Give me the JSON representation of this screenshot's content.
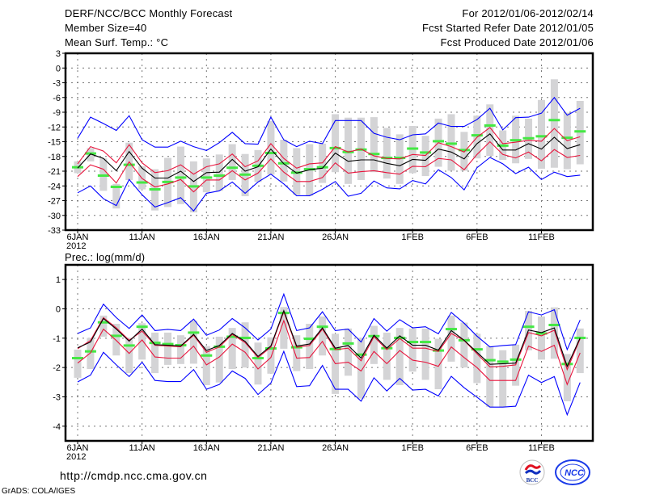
{
  "header": {
    "title": "DERF/NCC/BCC Monthly Forecast",
    "member_size": "Member Size=40",
    "period": "For 2012/01/06-2012/02/14",
    "started": "Fcst Started Refer Date 2012/01/05",
    "produced": "Fcst Produced Date 2012/01/06"
  },
  "footer": {
    "url": "http://cmdp.ncc.cma.gov.cn",
    "grads": "GrADS: COLA/IGES",
    "logo_left": "BCC",
    "logo_right": "NCC"
  },
  "colors": {
    "max_min": "#0000ff",
    "spread": "#e8143c",
    "mean": "#000000",
    "observed": "#44e844",
    "range_bar": "#d4d4d6"
  },
  "chart_data": [
    {
      "type": "line",
      "title": "Mean Surf. Temp.: °C",
      "xlabel": "",
      "ylabel": "Mean Surf. Temp.: °C",
      "ylim": [
        -33,
        3
      ],
      "yticks": [
        3,
        0,
        -3,
        -6,
        -9,
        -12,
        -15,
        -18,
        -21,
        -24,
        -27,
        -30,
        -33
      ],
      "xlim": [
        -1,
        40
      ],
      "xticks": [
        {
          "day": 0,
          "label": "6JAN"
        },
        {
          "day": 5,
          "label": "11JAN"
        },
        {
          "day": 10,
          "label": "16JAN"
        },
        {
          "day": 15,
          "label": "21JAN"
        },
        {
          "day": 20,
          "label": "26JAN"
        },
        {
          "day": 26,
          "label": "1FEB"
        },
        {
          "day": 31,
          "label": "6FEB"
        },
        {
          "day": 36,
          "label": "11FEB"
        }
      ],
      "year_label": "2012",
      "grid": true,
      "series": {
        "max": [
          -14.3,
          -10,
          -11.3,
          -12.7,
          -9.7,
          -14.6,
          -16.1,
          -16.1,
          -14.9,
          -16,
          -16.8,
          -15.2,
          -13.1,
          -15.4,
          -15.5,
          -10,
          -14.6,
          -16,
          -14.9,
          -15.4,
          -10.7,
          -10.7,
          -10.7,
          -13.3,
          -14.1,
          -14.6,
          -13.6,
          -13.4,
          -11.2,
          -11.9,
          -11.9,
          -10.5,
          -8.2,
          -12.6,
          -10.1,
          -10,
          -9.2,
          -6,
          -9.6,
          -8.2
        ],
        "upper": [
          -19.5,
          -16,
          -16.9,
          -19.3,
          -15.6,
          -19.3,
          -21.3,
          -20.9,
          -19.7,
          -21.6,
          -20.1,
          -19.5,
          -17.5,
          -20.1,
          -18.9,
          -15.4,
          -18.4,
          -20.4,
          -19.5,
          -19.3,
          -16,
          -17.1,
          -16.5,
          -17.9,
          -18.4,
          -18.5,
          -17.6,
          -17.8,
          -15.2,
          -16,
          -17.1,
          -14.1,
          -12.1,
          -15.4,
          -15.1,
          -14.7,
          -14.9,
          -12.3,
          -14.8,
          -14
        ],
        "mean": [
          -20.4,
          -17.5,
          -18.4,
          -20.9,
          -17,
          -20.4,
          -22.4,
          -22.4,
          -21,
          -23.1,
          -21.3,
          -21.2,
          -18.6,
          -21,
          -20.1,
          -16.5,
          -19.5,
          -21.4,
          -20.7,
          -20.4,
          -17.3,
          -19,
          -18.7,
          -18.7,
          -19.4,
          -19.9,
          -18.6,
          -18.8,
          -16.5,
          -17.1,
          -18.5,
          -15.4,
          -13.4,
          -16.7,
          -16.7,
          -15.4,
          -16.5,
          -14.1,
          -16.4,
          -15.6
        ],
        "lower": [
          -22.1,
          -19.7,
          -20.6,
          -23.4,
          -19.1,
          -22.5,
          -24.2,
          -23.6,
          -22.7,
          -25.2,
          -22.8,
          -22.8,
          -20.9,
          -22.8,
          -21.4,
          -18.5,
          -21.2,
          -23.1,
          -23.1,
          -22.3,
          -19.3,
          -21.4,
          -21.1,
          -20.9,
          -21.3,
          -21.6,
          -20,
          -20.1,
          -18.4,
          -18.7,
          -20.7,
          -17.6,
          -15,
          -17.6,
          -18.3,
          -17.1,
          -18.9,
          -16.6,
          -18.2,
          -17.8
        ],
        "min": [
          -25.4,
          -24,
          -26.6,
          -28,
          -22.7,
          -25.8,
          -28.3,
          -27.4,
          -26.4,
          -29.1,
          -25.5,
          -25,
          -23.2,
          -25.5,
          -23.2,
          -21.6,
          -23.6,
          -26,
          -26,
          -24.7,
          -23.1,
          -26.1,
          -25.5,
          -23,
          -24.4,
          -24.6,
          -22.9,
          -23.6,
          -20.7,
          -22.3,
          -24.8,
          -20.3,
          -18.2,
          -19.5,
          -21.5,
          -20.2,
          -22.7,
          -21.2,
          -22.1,
          -21.8
        ],
        "observed": [
          -20.2,
          -17.4,
          -21.9,
          -24.2,
          -19.7,
          -23.3,
          -24.7,
          -23.2,
          -22.3,
          -24.1,
          -22.3,
          -21.9,
          -20.3,
          -21.7,
          -19.9,
          -17.3,
          -19.4,
          -21.3,
          -20.6,
          -20.2,
          -16.3,
          -17.1,
          -16.6,
          -17.5,
          -18.3,
          -18.3,
          -16.4,
          -17.2,
          -14.9,
          -15.4,
          -16.7,
          -13.7,
          -11.7,
          -15.8,
          -14.7,
          -14.3,
          -13.9,
          -10.6,
          -14.2,
          -12.9
        ],
        "bar_high": [
          -19,
          -16.3,
          -18.4,
          -23.6,
          -15.2,
          -20,
          -20.6,
          -18.3,
          -16,
          -19,
          -18.4,
          -17.6,
          -15.5,
          -17.5,
          -16.7,
          -10.8,
          -14.6,
          -16.3,
          -15.5,
          -15.4,
          -9.4,
          -10.1,
          -10.1,
          -10,
          -12.2,
          -13.5,
          -11.8,
          -13.8,
          -10.3,
          -9.4,
          -13,
          -9.7,
          -7.4,
          -12.7,
          -9.7,
          -10.3,
          -6.5,
          -2.3,
          -9.1,
          -6.7
        ],
        "bar_low": [
          -21.4,
          -19,
          -25,
          -28.6,
          -22.8,
          -24.7,
          -29,
          -28.3,
          -27.7,
          -29.4,
          -25.3,
          -25,
          -22.8,
          -26.1,
          -23.2,
          -21.7,
          -23.1,
          -25.8,
          -26,
          -23.4,
          -21.2,
          -23.6,
          -22.8,
          -21.2,
          -22.5,
          -23.6,
          -21.4,
          -22,
          -20.1,
          -20.9,
          -20.9,
          -18.4,
          -17.9,
          -18.7,
          -19.4,
          -18.5,
          -20.5,
          -20.3,
          -20.6,
          -19.6
        ]
      }
    },
    {
      "type": "line",
      "title": "Prec.: log(mm/d)",
      "xlabel": "",
      "ylabel": "Prec.: log(mm/d)",
      "ylim": [
        -4.5,
        1.5
      ],
      "yticks": [
        1,
        0,
        -1,
        -2,
        -3,
        -4
      ],
      "xlim": [
        -1,
        40
      ],
      "xticks": [
        {
          "day": 0,
          "label": "6JAN"
        },
        {
          "day": 5,
          "label": "11JAN"
        },
        {
          "day": 10,
          "label": "16JAN"
        },
        {
          "day": 15,
          "label": "21JAN"
        },
        {
          "day": 20,
          "label": "26JAN"
        },
        {
          "day": 26,
          "label": "1FEB"
        },
        {
          "day": 31,
          "label": "6FEB"
        },
        {
          "day": 36,
          "label": "11FEB"
        }
      ],
      "year_label": "2012",
      "grid": true,
      "series": {
        "max": [
          -0.84,
          -0.65,
          0.16,
          -0.3,
          -0.67,
          -0.21,
          -0.74,
          -0.7,
          -0.74,
          -0.35,
          -0.9,
          -0.72,
          -0.33,
          -0.65,
          -1.06,
          -0.69,
          0.5,
          -0.74,
          -0.65,
          -0.1,
          -0.74,
          -0.69,
          -1.13,
          -0.33,
          -0.76,
          -0.37,
          -0.65,
          -0.61,
          -0.85,
          -0.12,
          -0.49,
          -0.93,
          -1.3,
          -1.25,
          -1.22,
          -0.1,
          -0.21,
          -0.03,
          -1.39,
          -0.38
        ],
        "upper": [
          -1.36,
          -1.08,
          -0.3,
          -0.65,
          -1.07,
          -0.76,
          -1.24,
          -1.27,
          -1.29,
          -0.9,
          -1.48,
          -1.3,
          -0.87,
          -1.15,
          -1.66,
          -1.31,
          -0.1,
          -1.31,
          -1.25,
          -0.69,
          -1.39,
          -1.34,
          -1.77,
          -0.95,
          -1.39,
          -1.01,
          -1.34,
          -1.34,
          -1.45,
          -0.84,
          -1.08,
          -1.53,
          -1.98,
          -1.96,
          -1.91,
          -0.81,
          -0.92,
          -0.73,
          -2.07,
          -1.02
        ],
        "mean": [
          -1.33,
          -1.13,
          -0.33,
          -0.69,
          -1.1,
          -0.69,
          -1.22,
          -1.24,
          -1.27,
          -0.87,
          -1.42,
          -1.25,
          -0.84,
          -1.11,
          -1.62,
          -1.27,
          -0.06,
          -1.27,
          -1.2,
          -0.65,
          -1.34,
          -1.25,
          -1.68,
          -0.9,
          -1.34,
          -0.92,
          -1.24,
          -1.24,
          -1.41,
          -0.74,
          -1.07,
          -1.48,
          -1.89,
          -1.87,
          -1.85,
          -0.72,
          -0.81,
          -0.65,
          -1.96,
          -0.99
        ],
        "lower": [
          -1.85,
          -1.5,
          -0.69,
          -1.08,
          -1.52,
          -1.06,
          -1.64,
          -1.68,
          -1.68,
          -1.27,
          -1.91,
          -1.64,
          -1.2,
          -1.48,
          -2.05,
          -1.66,
          -0.4,
          -1.68,
          -1.66,
          -1.11,
          -1.87,
          -1.82,
          -2.12,
          -1.45,
          -1.87,
          -1.42,
          -1.75,
          -1.82,
          -1.96,
          -1.3,
          -1.66,
          -2,
          -2.44,
          -2.44,
          -2.44,
          -1.27,
          -1.45,
          -1.24,
          -2.58,
          -1.5
        ],
        "min": [
          -2.49,
          -2.26,
          -1.48,
          -1.91,
          -2.31,
          -1.82,
          -2.44,
          -2.48,
          -2.48,
          -2.07,
          -2.74,
          -2.58,
          -2.12,
          -2.37,
          -2.92,
          -2.53,
          -1.45,
          -2.65,
          -2.62,
          -1.93,
          -2.74,
          -2.74,
          -3.15,
          -2.35,
          -2.8,
          -2.37,
          -2.77,
          -2.74,
          -2.97,
          -2.3,
          -2.69,
          -3.01,
          -3.35,
          -3.35,
          -3.32,
          -2.26,
          -2.51,
          -2.31,
          -3.61,
          -2.51
        ],
        "observed": [
          -1.68,
          -1.45,
          -0.46,
          -0.92,
          -1.25,
          -0.61,
          -1.16,
          -1.2,
          -1.24,
          -0.81,
          -1.59,
          -1.29,
          -0.95,
          -0.99,
          -1.68,
          -1.35,
          -0.14,
          -1.31,
          -1.02,
          -0.61,
          -1.37,
          -1.18,
          -1.56,
          -0.93,
          -1.34,
          -0.99,
          -1.13,
          -1.13,
          -1.42,
          -0.69,
          -1.07,
          -1.38,
          -1.75,
          -1.8,
          -1.73,
          -0.61,
          -0.84,
          -0.55,
          -1.88,
          -0.99
        ],
        "bar_high": [
          -1.39,
          -0.99,
          -0.23,
          -0.51,
          -0.99,
          -0.49,
          -0.81,
          -0.81,
          -0.9,
          -0.4,
          -1.27,
          -0.95,
          -0.65,
          -0.46,
          -1.15,
          -0.97,
          0.06,
          -0.9,
          -0.51,
          -0.26,
          -0.85,
          -0.67,
          -0.99,
          -0.58,
          -0.81,
          -0.65,
          -0.67,
          -0.67,
          -1.02,
          -0.23,
          -0.47,
          -0.85,
          -1.27,
          -1.41,
          -1.22,
          -0.07,
          -0.26,
          0.05,
          -1.54,
          -0.67
        ],
        "bar_low": [
          -2.35,
          -2.05,
          -0.95,
          -1.59,
          -2.19,
          -1.73,
          -2.19,
          -1.91,
          -1.88,
          -1.87,
          -2.6,
          -2.51,
          -2.05,
          -2,
          -2.58,
          -2.21,
          -1.36,
          -2.12,
          -2.05,
          -1.59,
          -2.9,
          -2.28,
          -3.06,
          -1.88,
          -2.42,
          -2.6,
          -2.14,
          -2.42,
          -2.74,
          -1.8,
          -2,
          -2.53,
          -3.34,
          -3.35,
          -2.62,
          -1.41,
          -1.73,
          -1.7,
          -3.15,
          -2.19
        ]
      }
    }
  ]
}
